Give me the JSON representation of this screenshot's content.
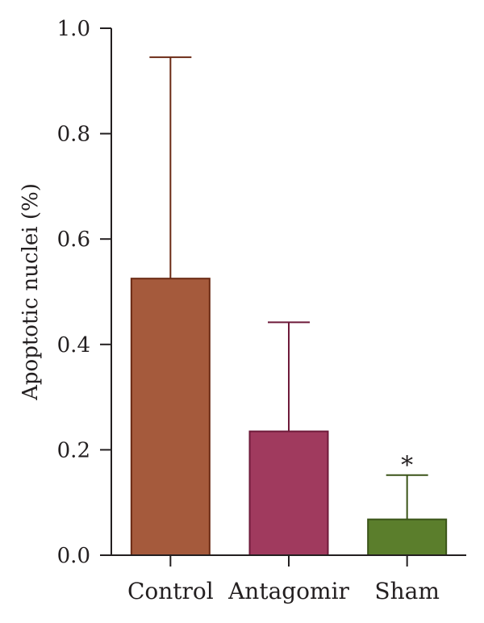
{
  "chart_data": {
    "type": "bar",
    "title": "",
    "xlabel": "",
    "ylabel": "Apoptotic nuclei (%)",
    "ylim": [
      0,
      1.0
    ],
    "yticks": [
      0.0,
      0.2,
      0.4,
      0.6,
      0.8,
      1.0
    ],
    "ytick_labels": [
      "0.0",
      "0.2",
      "0.4",
      "0.6",
      "0.8",
      "1.0"
    ],
    "grid": false,
    "categories": [
      "Control",
      "Antagomir",
      "Sham"
    ],
    "values": [
      0.525,
      0.235,
      0.068
    ],
    "error_upper": [
      0.945,
      0.442,
      0.152
    ],
    "colors": [
      "#a55a3c",
      "#a03a5e",
      "#5b7e2c"
    ],
    "edge_colors": [
      "#6b2a14",
      "#6e1a3a",
      "#3a5418"
    ],
    "annotations": [
      "",
      "",
      "*"
    ]
  }
}
